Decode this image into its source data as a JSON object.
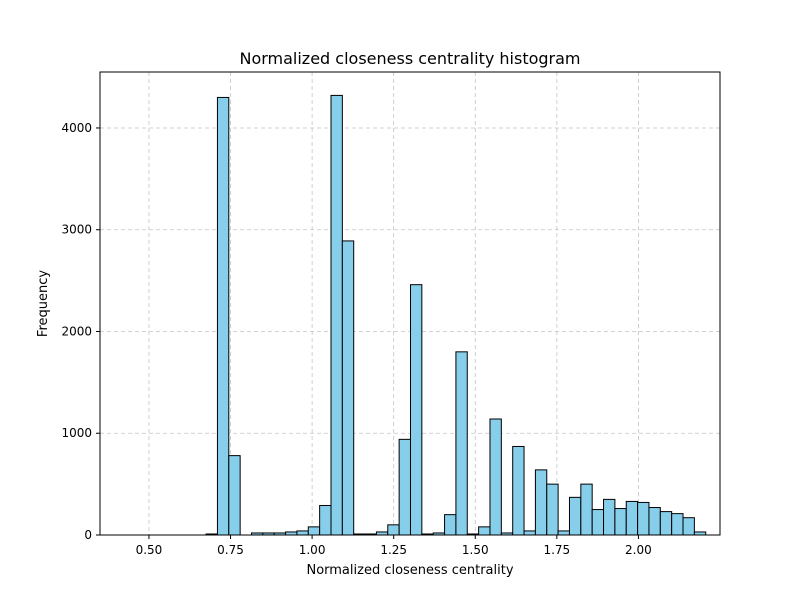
{
  "chart_data": {
    "type": "bar",
    "title": "Normalized closeness centrality histogram",
    "xlabel": "Normalized closeness centrality",
    "ylabel": "Frequency",
    "xlim": [
      0.35,
      2.25
    ],
    "ylim": [
      0,
      4550
    ],
    "x_ticks": [
      0.5,
      0.75,
      1.0,
      1.25,
      1.5,
      1.75,
      2.0
    ],
    "x_tick_labels": [
      "0.50",
      "0.75",
      "1.00",
      "1.25",
      "1.50",
      "1.75",
      "2.00"
    ],
    "y_ticks": [
      0,
      1000,
      2000,
      3000,
      4000
    ],
    "y_tick_labels": [
      "0",
      "1000",
      "2000",
      "3000",
      "4000"
    ],
    "grid": true,
    "bar_color": "#87CEEB",
    "bar_edge_color": "#000000",
    "bin_start": 0.3967,
    "bin_width": 0.0348,
    "values": [
      0,
      0,
      0,
      0,
      0,
      0,
      0,
      0,
      10,
      4300,
      780,
      0,
      20,
      20,
      20,
      30,
      40,
      80,
      290,
      4320,
      2890,
      10,
      10,
      30,
      100,
      940,
      2460,
      10,
      20,
      200,
      1800,
      10,
      80,
      1140,
      20,
      870,
      40,
      640,
      500,
      40,
      370,
      500,
      250,
      350,
      260,
      330,
      320,
      270,
      230,
      210,
      170,
      30
    ]
  }
}
